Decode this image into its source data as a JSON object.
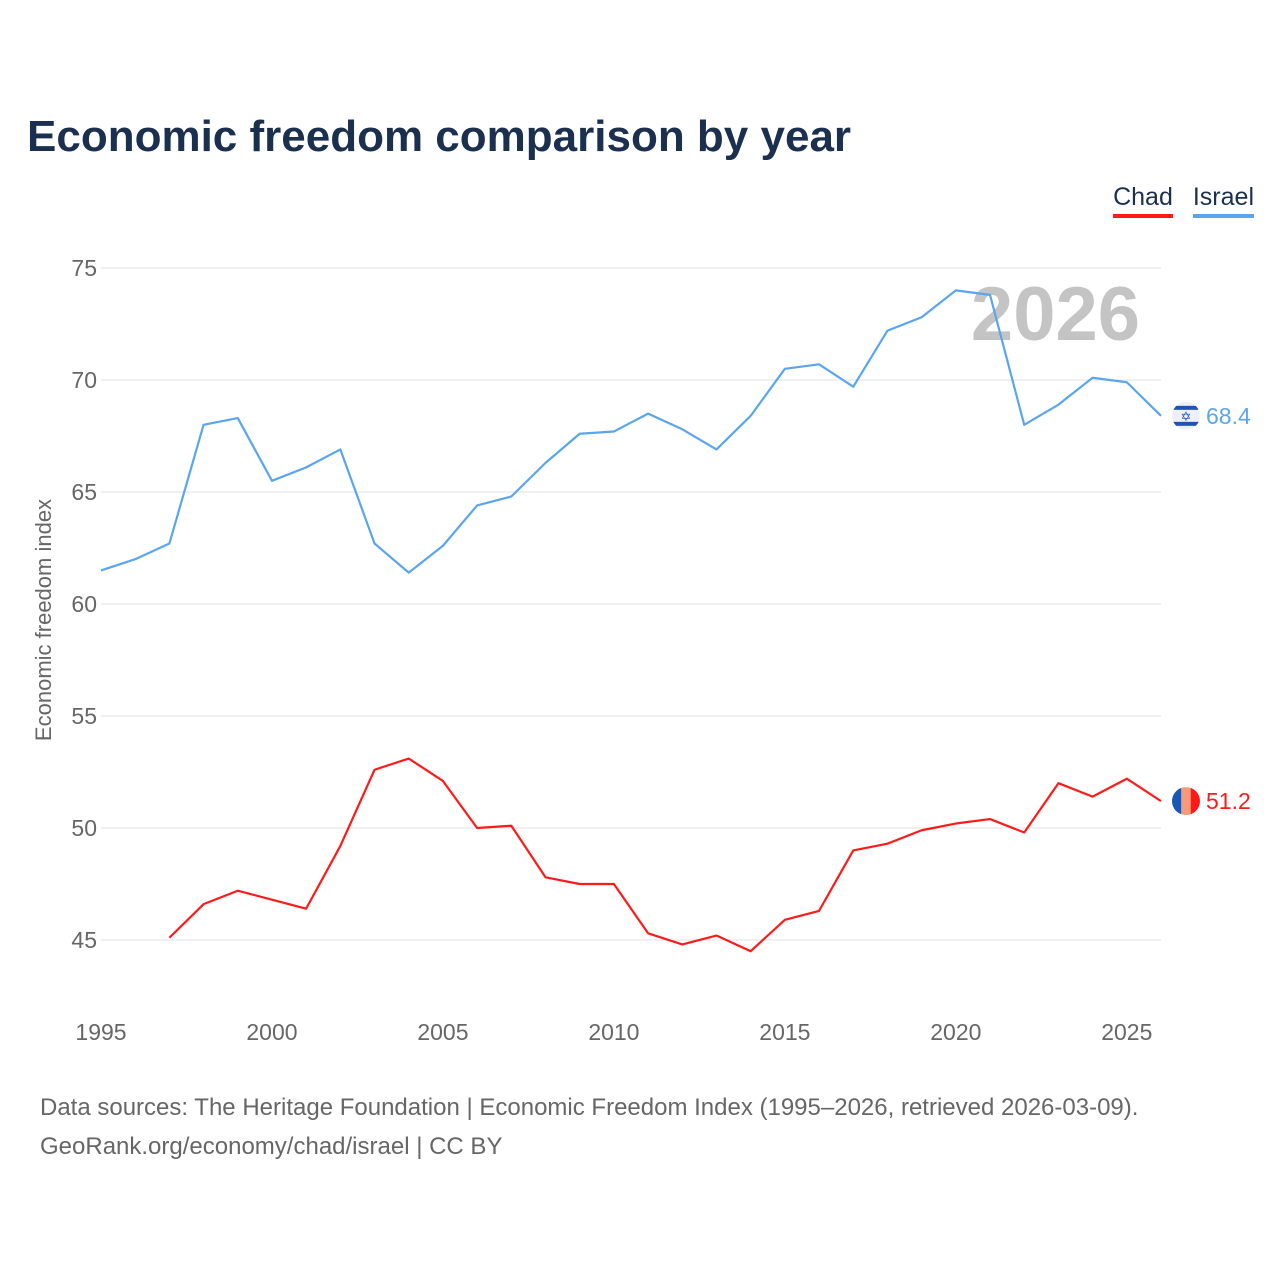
{
  "title": "Economic freedom comparison by year",
  "legend": [
    {
      "label": "Chad",
      "color": "#ff1a1a"
    },
    {
      "label": "Israel",
      "color": "#5aa5ee"
    }
  ],
  "source_line1": "Data sources: The Heritage Foundation | Economic Freedom Index (1995–2026, retrieved 2026-03-09).",
  "source_line2": "GeoRank.org/economy/chad/israel | CC BY",
  "chart_data": {
    "type": "line",
    "title": "Economic freedom comparison by year",
    "xlabel": "",
    "ylabel": "Economic freedom index",
    "year_watermark": "2026",
    "xlim": [
      1995,
      2026
    ],
    "ylim": [
      43,
      75
    ],
    "xticks": [
      1995,
      2000,
      2005,
      2010,
      2015,
      2020,
      2025
    ],
    "yticks": [
      45,
      50,
      55,
      60,
      65,
      70,
      75
    ],
    "grid": true,
    "legend_position": "top-right",
    "series": [
      {
        "name": "Chad",
        "color": "#ff1a1a",
        "end_label": "51.2",
        "x": [
          1997,
          1998,
          1999,
          2000,
          2001,
          2002,
          2003,
          2004,
          2005,
          2006,
          2007,
          2008,
          2009,
          2010,
          2011,
          2012,
          2013,
          2014,
          2015,
          2016,
          2017,
          2018,
          2019,
          2020,
          2021,
          2022,
          2023,
          2024,
          2025,
          2026
        ],
        "values": [
          45.1,
          46.6,
          47.2,
          46.8,
          46.4,
          49.2,
          52.6,
          53.1,
          52.1,
          50.0,
          50.1,
          47.8,
          47.5,
          47.5,
          45.3,
          44.8,
          45.2,
          44.5,
          45.9,
          46.3,
          49.0,
          49.3,
          49.9,
          50.2,
          50.4,
          49.8,
          52.0,
          51.4,
          52.2,
          51.2
        ]
      },
      {
        "name": "Israel",
        "color": "#5aa5ee",
        "end_label": "68.4",
        "x": [
          1995,
          1996,
          1997,
          1998,
          1999,
          2000,
          2001,
          2002,
          2003,
          2004,
          2005,
          2006,
          2007,
          2008,
          2009,
          2010,
          2011,
          2012,
          2013,
          2014,
          2015,
          2016,
          2017,
          2018,
          2019,
          2020,
          2021,
          2022,
          2023,
          2024,
          2025,
          2026
        ],
        "values": [
          61.5,
          62.0,
          62.7,
          68.0,
          68.3,
          65.5,
          66.1,
          66.9,
          62.7,
          61.4,
          62.6,
          64.4,
          64.8,
          66.3,
          67.6,
          67.7,
          68.5,
          67.8,
          66.9,
          68.4,
          70.5,
          70.7,
          69.7,
          72.2,
          72.8,
          74.0,
          73.8,
          68.0,
          68.9,
          70.1,
          69.9,
          68.4
        ]
      }
    ]
  }
}
